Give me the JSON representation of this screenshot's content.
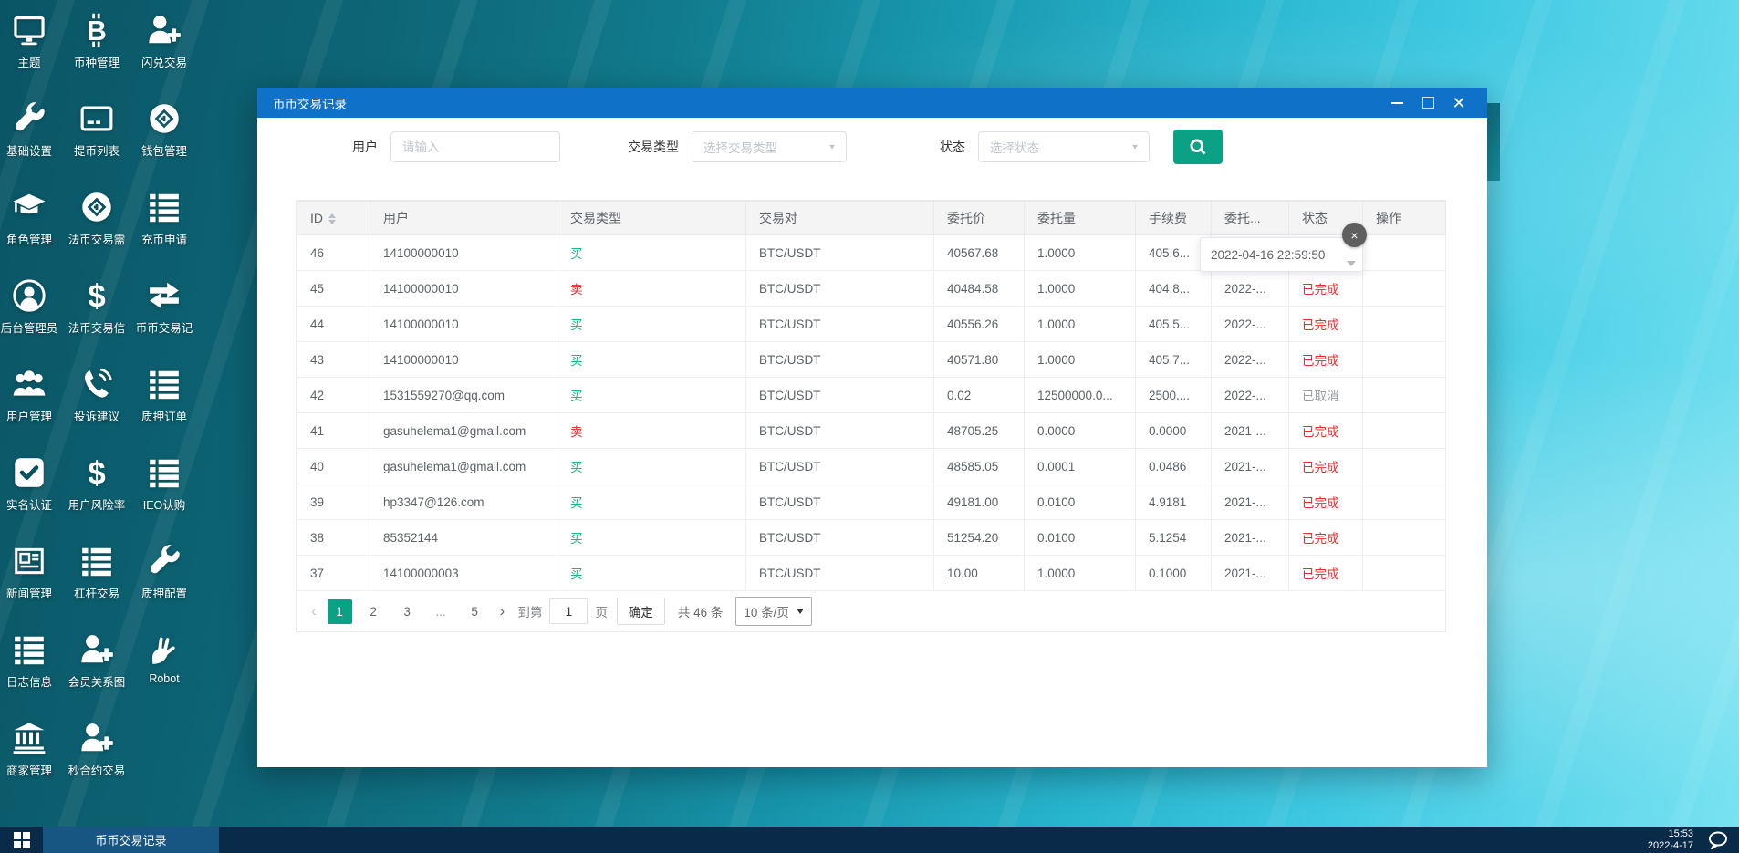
{
  "desktop": {
    "icons": [
      {
        "label": "主题",
        "icon": "monitor"
      },
      {
        "label": "币种管理",
        "icon": "bitcoin"
      },
      {
        "label": "闪兑交易",
        "icon": "person-plus"
      },
      {
        "label": "基础设置",
        "icon": "wrench"
      },
      {
        "label": "提币列表",
        "icon": "card"
      },
      {
        "label": "钱包管理",
        "icon": "coin-circle"
      },
      {
        "label": "角色管理",
        "icon": "grad-cap"
      },
      {
        "label": "法币交易需",
        "icon": "coin-circle"
      },
      {
        "label": "充币申请",
        "icon": "list"
      },
      {
        "label": "后台管理员",
        "icon": "person-circle"
      },
      {
        "label": "法币交易信",
        "icon": "dollar"
      },
      {
        "label": "币币交易记",
        "icon": "swap"
      },
      {
        "label": "用户管理",
        "icon": "people"
      },
      {
        "label": "投诉建议",
        "icon": "phone"
      },
      {
        "label": "质押订单",
        "icon": "list"
      },
      {
        "label": "实名认证",
        "icon": "check-square"
      },
      {
        "label": "用户风险率",
        "icon": "dollar"
      },
      {
        "label": "IEO认购",
        "icon": "list"
      },
      {
        "label": "新闻管理",
        "icon": "newspaper"
      },
      {
        "label": "杠杆交易",
        "icon": "list"
      },
      {
        "label": "质押配置",
        "icon": "wrench"
      },
      {
        "label": "日志信息",
        "icon": "list"
      },
      {
        "label": "会员关系图",
        "icon": "person-plus"
      },
      {
        "label": "Robot",
        "icon": "hand"
      },
      {
        "label": "商家管理",
        "icon": "bank"
      },
      {
        "label": "秒合约交易",
        "icon": "person-plus"
      }
    ]
  },
  "window": {
    "title": "币币交易记录",
    "filters": {
      "user_label": "用户",
      "user_placeholder": "请输入",
      "type_label": "交易类型",
      "type_placeholder": "选择交易类型",
      "status_label": "状态",
      "status_placeholder": "选择状态"
    },
    "table": {
      "columns": [
        "ID",
        "用户",
        "交易类型",
        "交易对",
        "委托价",
        "委托量",
        "手续费",
        "委托...",
        "状态",
        "操作"
      ],
      "rows": [
        {
          "id": "46",
          "user": "14100000010",
          "type": "买",
          "pair": "BTC/USDT",
          "price": "40567.68",
          "amount": "1.0000",
          "fee": "405.6...",
          "time": "",
          "status": "",
          "action": ""
        },
        {
          "id": "45",
          "user": "14100000010",
          "type": "卖",
          "pair": "BTC/USDT",
          "price": "40484.58",
          "amount": "1.0000",
          "fee": "404.8...",
          "time": "2022-...",
          "status": "已完成",
          "action": ""
        },
        {
          "id": "44",
          "user": "14100000010",
          "type": "买",
          "pair": "BTC/USDT",
          "price": "40556.26",
          "amount": "1.0000",
          "fee": "405.5...",
          "time": "2022-...",
          "status": "已完成",
          "action": ""
        },
        {
          "id": "43",
          "user": "14100000010",
          "type": "买",
          "pair": "BTC/USDT",
          "price": "40571.80",
          "amount": "1.0000",
          "fee": "405.7...",
          "time": "2022-...",
          "status": "已完成",
          "action": ""
        },
        {
          "id": "42",
          "user": "1531559270@qq.com",
          "type": "买",
          "pair": "BTC/USDT",
          "price": "0.02",
          "amount": "12500000.0...",
          "fee": "2500....",
          "time": "2022-...",
          "status": "已取消",
          "action": ""
        },
        {
          "id": "41",
          "user": "gasuhelema1@gmail.com",
          "type": "卖",
          "pair": "BTC/USDT",
          "price": "48705.25",
          "amount": "0.0000",
          "fee": "0.0000",
          "time": "2021-...",
          "status": "已完成",
          "action": ""
        },
        {
          "id": "40",
          "user": "gasuhelema1@gmail.com",
          "type": "买",
          "pair": "BTC/USDT",
          "price": "48585.05",
          "amount": "0.0001",
          "fee": "0.0486",
          "time": "2021-...",
          "status": "已完成",
          "action": ""
        },
        {
          "id": "39",
          "user": "hp3347@126.com",
          "type": "买",
          "pair": "BTC/USDT",
          "price": "49181.00",
          "amount": "0.0100",
          "fee": "4.9181",
          "time": "2021-...",
          "status": "已完成",
          "action": ""
        },
        {
          "id": "38",
          "user": "85352144",
          "type": "买",
          "pair": "BTC/USDT",
          "price": "51254.20",
          "amount": "0.0100",
          "fee": "5.1254",
          "time": "2021-...",
          "status": "已完成",
          "action": ""
        },
        {
          "id": "37",
          "user": "14100000003",
          "type": "买",
          "pair": "BTC/USDT",
          "price": "10.00",
          "amount": "1.0000",
          "fee": "0.1000",
          "time": "2021-...",
          "status": "已完成",
          "action": ""
        }
      ]
    },
    "popover": {
      "text": "2022-04-16 22:59:50",
      "close_glyph": "×"
    },
    "pagination": {
      "prev": "‹",
      "pages": [
        "1",
        "2",
        "3",
        "...",
        "5"
      ],
      "active_page": "1",
      "next": "›",
      "goto_label": "到第",
      "goto_value": "1",
      "page_label": "页",
      "confirm_label": "确定",
      "total_label": "共 46 条",
      "per_page_label": "10 条/页"
    }
  },
  "taskbar": {
    "task_label": "币币交易记录",
    "time": "15:53",
    "date": "2022-4-17"
  },
  "colors": {
    "titlebar_blue": "#0f72c8",
    "accent_teal": "#0ba184",
    "buy_green": "#0fbe7e",
    "sell_red": "#e72528",
    "status_done_red": "#f02a2a",
    "status_cancel_gray": "#9a9da1",
    "taskbar_navy": "#0a2a4a"
  }
}
